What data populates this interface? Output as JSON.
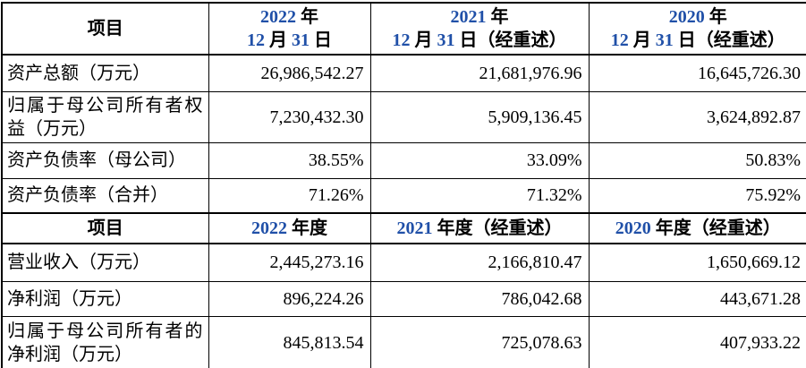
{
  "colors": {
    "header_digit_blue": "#2050a8",
    "text": "#000000",
    "border": "#000000",
    "background": "#ffffff"
  },
  "table": {
    "sections": [
      {
        "header": {
          "item_label": "项目",
          "cols": [
            [
              "2022 年",
              "12 月 31 日"
            ],
            [
              "2021 年",
              "12 月 31 日（经重述）"
            ],
            [
              "2020 年",
              "12 月 31 日（经重述）"
            ]
          ]
        },
        "rows": [
          {
            "label": "资产总额（万元）",
            "values": [
              "26,986,542.27",
              "21,681,976.96",
              "16,645,726.30"
            ]
          },
          {
            "label": "归属于母公司所有者权益（万元）",
            "values": [
              "7,230,432.30",
              "5,909,136.45",
              "3,624,892.87"
            ]
          },
          {
            "label": "资产负债率（母公司）",
            "values": [
              "38.55%",
              "33.09%",
              "50.83%"
            ]
          },
          {
            "label": "资产负债率（合并）",
            "values": [
              "71.26%",
              "71.32%",
              "75.92%"
            ]
          }
        ]
      },
      {
        "header": {
          "item_label": "项目",
          "cols": [
            [
              "2022 年度"
            ],
            [
              "2021 年度（经重述）"
            ],
            [
              "2020 年度（经重述）"
            ]
          ]
        },
        "rows": [
          {
            "label": "营业收入（万元）",
            "values": [
              "2,445,273.16",
              "2,166,810.47",
              "1,650,669.12"
            ]
          },
          {
            "label": "净利润（万元）",
            "values": [
              "896,224.26",
              "786,042.68",
              "443,671.28"
            ]
          },
          {
            "label": "归属于母公司所有者的净利润（万元）",
            "values": [
              "845,813.54",
              "725,078.63",
              "407,933.22"
            ]
          }
        ]
      }
    ]
  }
}
